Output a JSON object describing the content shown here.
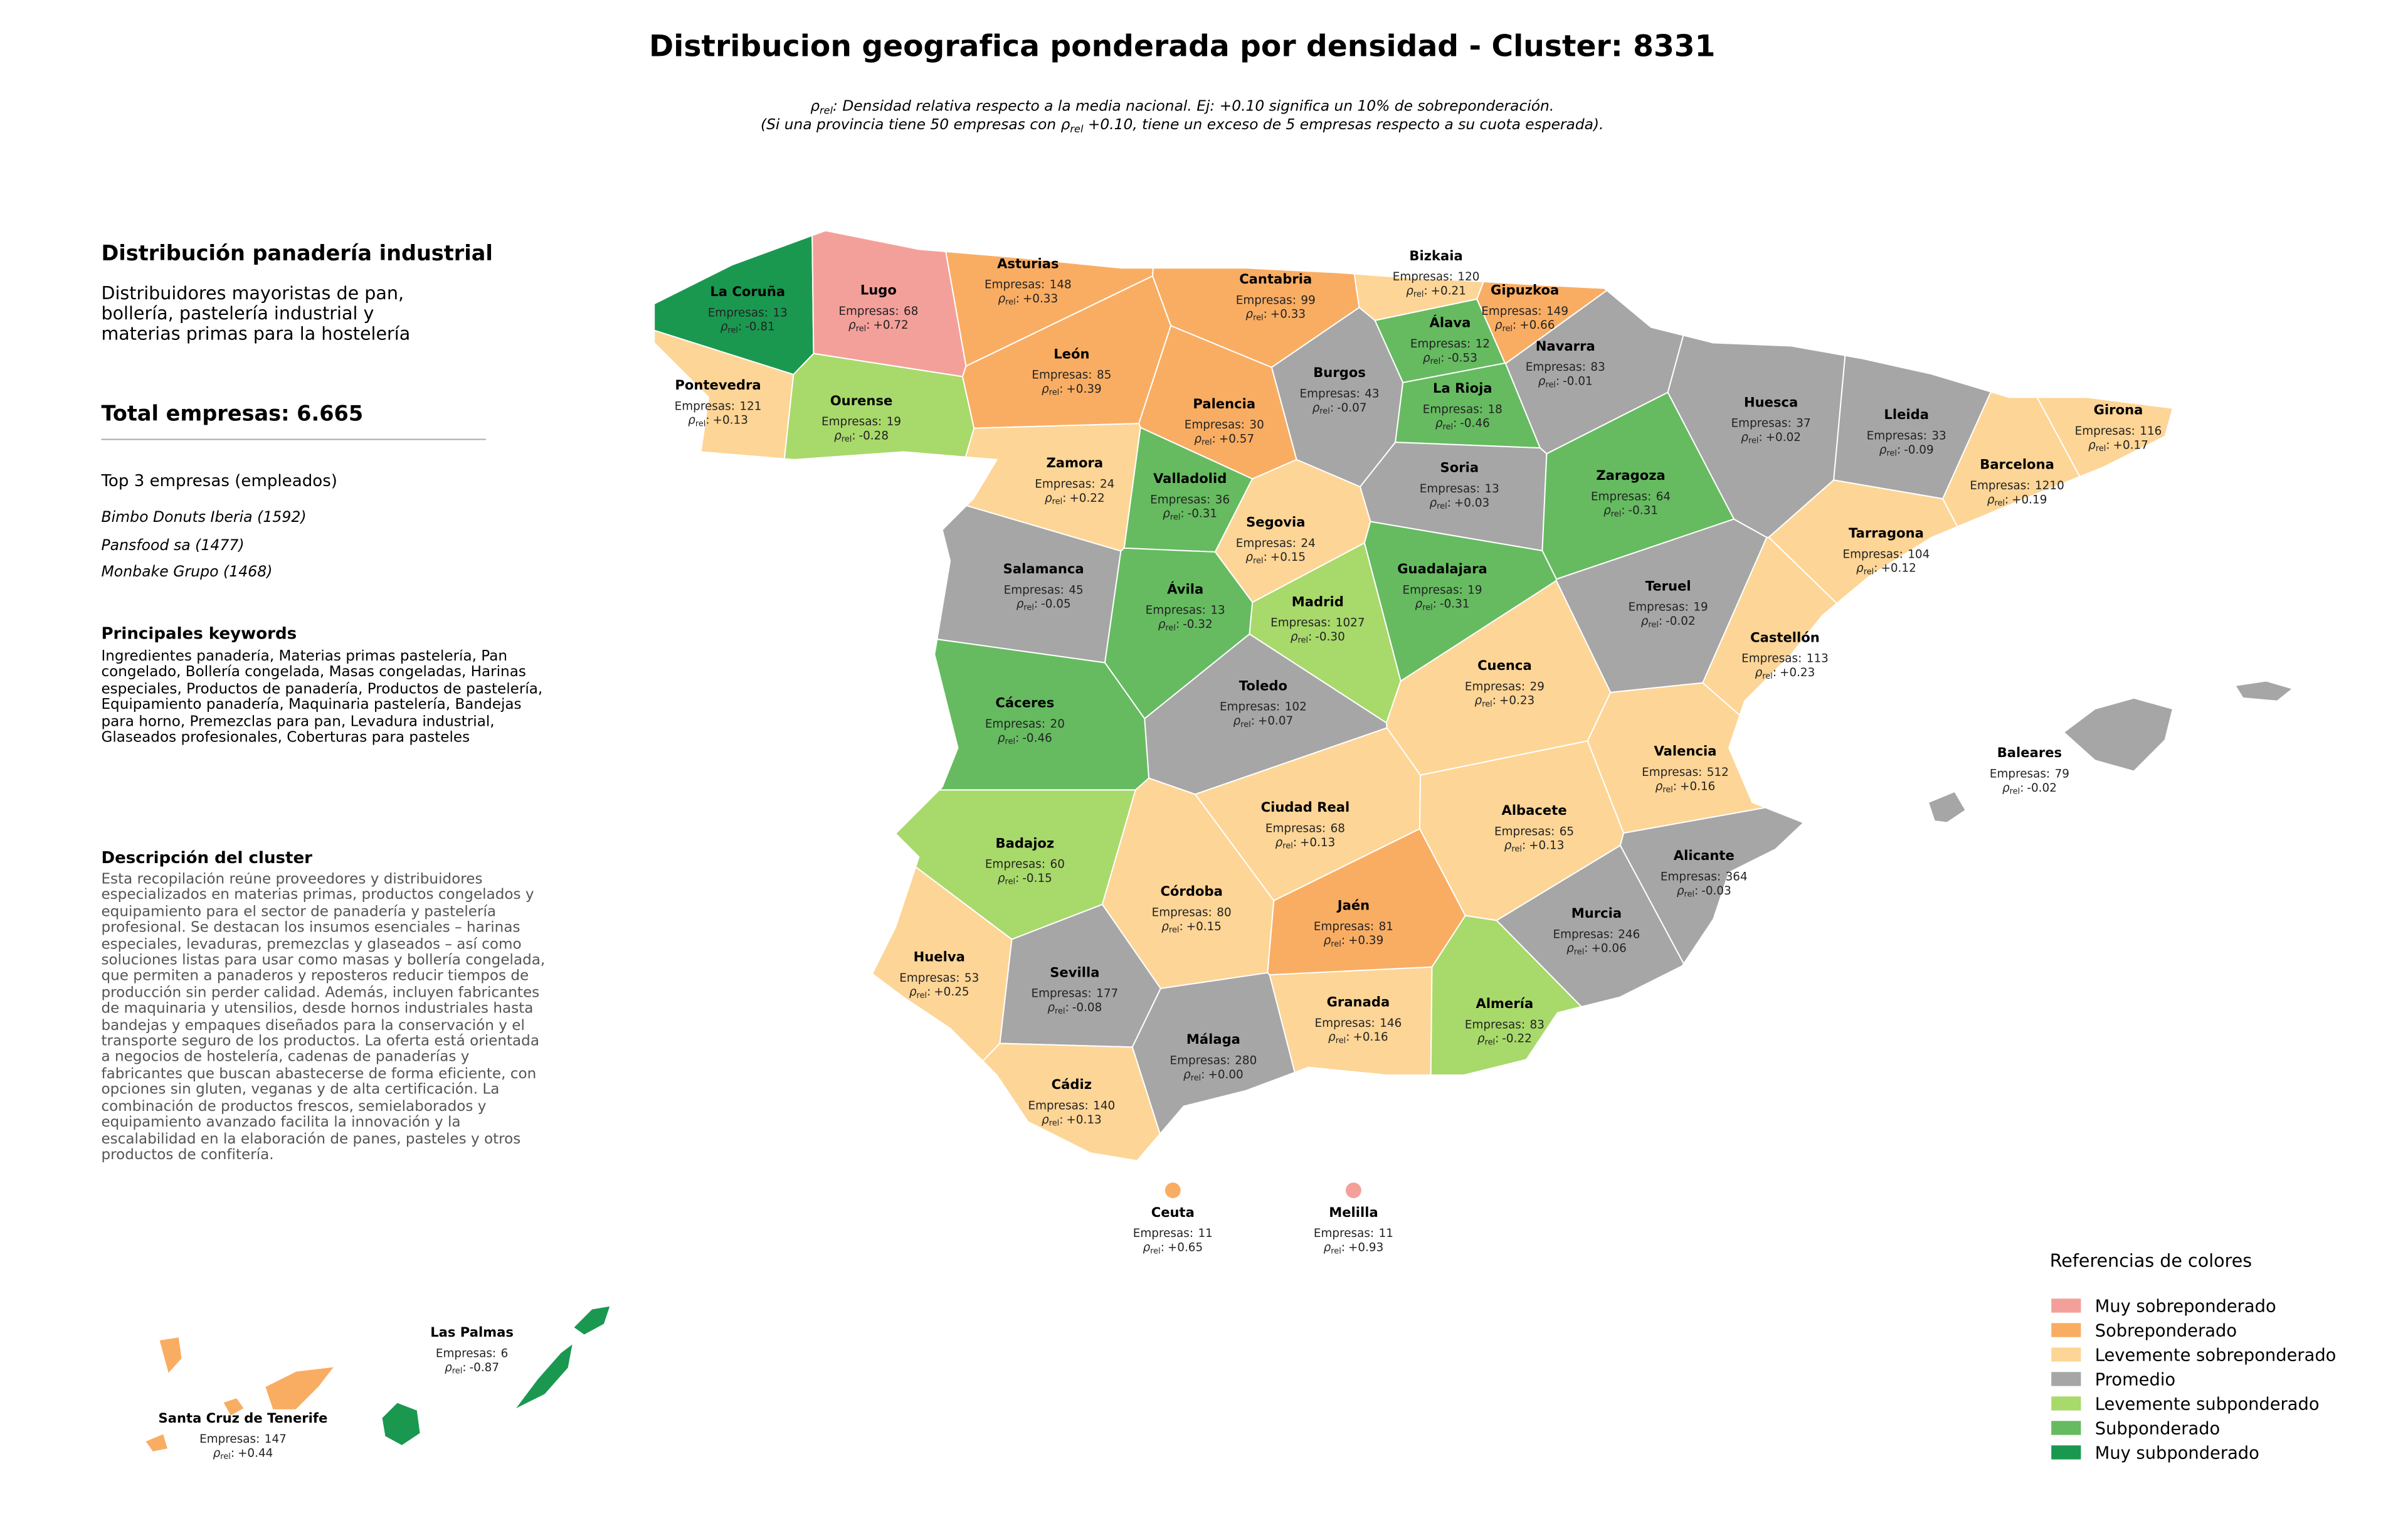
{
  "title": "Distribucion geografica ponderada por densidad - Cluster: 8331",
  "note": {
    "symbol": "ρ",
    "subscript": "rel",
    "line1": ": Densidad relativa respecto a la media nacional. Ej: +0.10 significa un 10% de sobreponderación.",
    "line2_before": "(Si una provincia tiene 50 empresas con ",
    "line2_after": " +0.10, tiene un exceso de 5 empresas respecto a su cuota esperada)."
  },
  "sidebar": {
    "heading": "Distribución panadería industrial",
    "description": "Distribuidores mayoristas de pan, bollería, pastelería industrial y materias primas para la hostelería",
    "total": "Total empresas: 6.665",
    "top_title": "Top 3 empresas (empleados)",
    "top_companies": [
      "Bimbo Donuts Iberia (1592)",
      "Pansfood sa (1477)",
      "Monbake Grupo (1468)"
    ],
    "keywords_title": "Principales keywords",
    "keywords": "Ingredientes panadería, Materias primas pastelería, Pan congelado, Bollería congelada, Masas congeladas, Harinas especiales, Productos de panadería, Productos de pastelería, Equipamiento panadería, Maquinaria pastelería, Bandejas para horno, Premezclas para pan, Levadura industrial, Glaseados profesionales, Coberturas para pasteles",
    "cluster_title": "Descripción del cluster",
    "cluster_text": "Esta recopilación reúne proveedores y distribuidores especializados en materias primas, productos congelados y equipamiento para el sector de panadería y pastelería profesional. Se destacan los insumos esenciales – harinas especiales, levaduras, premezclas y glaseados – así como soluciones listas para usar como masas y bollería congelada, que permiten a panaderos y reposteros reducir tiempos de producción sin perder calidad. Además, incluyen fabricantes de maquinaria y utensilios, desde hornos industriales hasta bandejas y empaques diseñados para la conservación y el transporte seguro de los productos. La oferta está orientada a negocios de hostelería, cadenas de panaderías y fabricantes que buscan abastecerse de forma eficiente, con opciones sin gluten, veganas y de alta certificación. La combinación de productos frescos, semielaborados y equipamiento avanzado facilita la innovación y la escalabilidad en la elaboración de panes, pasteles y otros productos de confitería."
  },
  "map": {
    "count_label": "Empresas:",
    "rho_symbol": "ρ",
    "rho_subscript": "rel",
    "rho_separator": ":",
    "provinces": [
      {
        "name": "La Coruña",
        "empresas": 13,
        "rho": -0.81,
        "rho_label": "-0.81",
        "color": "#1a9850"
      },
      {
        "name": "Lugo",
        "empresas": 68,
        "rho": 0.72,
        "rho_label": "+0.72",
        "color": "#f4a09a"
      },
      {
        "name": "Asturias",
        "empresas": 148,
        "rho": 0.33,
        "rho_label": "+0.33",
        "color": "#f9ad63"
      },
      {
        "name": "Cantabria",
        "empresas": 99,
        "rho": 0.33,
        "rho_label": "+0.33",
        "color": "#f9ad63"
      },
      {
        "name": "Bizkaia",
        "empresas": 120,
        "rho": 0.21,
        "rho_label": "+0.21",
        "color": "#fdd596"
      },
      {
        "name": "Gipuzkoa",
        "empresas": 149,
        "rho": 0.66,
        "rho_label": "+0.66",
        "color": "#f9ad63"
      },
      {
        "name": "Álava",
        "empresas": 12,
        "rho": -0.53,
        "rho_label": "-0.53",
        "color": "#66bb61"
      },
      {
        "name": "Navarra",
        "empresas": 83,
        "rho": -0.01,
        "rho_label": "-0.01",
        "color": "#a6a6a6"
      },
      {
        "name": "Pontevedra",
        "empresas": 121,
        "rho": 0.13,
        "rho_label": "+0.13",
        "color": "#fdd596"
      },
      {
        "name": "Ourense",
        "empresas": 19,
        "rho": -0.28,
        "rho_label": "-0.28",
        "color": "#a8d96b"
      },
      {
        "name": "León",
        "empresas": 85,
        "rho": 0.39,
        "rho_label": "+0.39",
        "color": "#f9ad63"
      },
      {
        "name": "Palencia",
        "empresas": 30,
        "rho": 0.57,
        "rho_label": "+0.57",
        "color": "#f9ad63"
      },
      {
        "name": "Burgos",
        "empresas": 43,
        "rho": -0.07,
        "rho_label": "-0.07",
        "color": "#a6a6a6"
      },
      {
        "name": "La Rioja",
        "empresas": 18,
        "rho": -0.46,
        "rho_label": "-0.46",
        "color": "#66bb61"
      },
      {
        "name": "Huesca",
        "empresas": 37,
        "rho": 0.02,
        "rho_label": "+0.02",
        "color": "#a6a6a6"
      },
      {
        "name": "Lleida",
        "empresas": 33,
        "rho": -0.09,
        "rho_label": "-0.09",
        "color": "#a6a6a6"
      },
      {
        "name": "Girona",
        "empresas": 116,
        "rho": 0.17,
        "rho_label": "+0.17",
        "color": "#fdd596"
      },
      {
        "name": "Zamora",
        "empresas": 24,
        "rho": 0.22,
        "rho_label": "+0.22",
        "color": "#fdd596"
      },
      {
        "name": "Valladolid",
        "empresas": 36,
        "rho": -0.31,
        "rho_label": "-0.31",
        "color": "#66bb61"
      },
      {
        "name": "Soria",
        "empresas": 13,
        "rho": 0.03,
        "rho_label": "+0.03",
        "color": "#a6a6a6"
      },
      {
        "name": "Zaragoza",
        "empresas": 64,
        "rho": -0.31,
        "rho_label": "-0.31",
        "color": "#66bb61"
      },
      {
        "name": "Barcelona",
        "empresas": 1210,
        "rho": 0.19,
        "rho_label": "+0.19",
        "color": "#fdd596"
      },
      {
        "name": "Segovia",
        "empresas": 24,
        "rho": 0.15,
        "rho_label": "+0.15",
        "color": "#fdd596"
      },
      {
        "name": "Tarragona",
        "empresas": 104,
        "rho": 0.12,
        "rho_label": "+0.12",
        "color": "#fdd596"
      },
      {
        "name": "Salamanca",
        "empresas": 45,
        "rho": -0.05,
        "rho_label": "-0.05",
        "color": "#a6a6a6"
      },
      {
        "name": "Guadalajara",
        "empresas": 19,
        "rho": -0.31,
        "rho_label": "-0.31",
        "color": "#66bb61"
      },
      {
        "name": "Ávila",
        "empresas": 13,
        "rho": -0.32,
        "rho_label": "-0.32",
        "color": "#66bb61"
      },
      {
        "name": "Madrid",
        "empresas": 1027,
        "rho": -0.3,
        "rho_label": "-0.30",
        "color": "#a8d96b"
      },
      {
        "name": "Teruel",
        "empresas": 19,
        "rho": -0.02,
        "rho_label": "-0.02",
        "color": "#a6a6a6"
      },
      {
        "name": "Castellón",
        "empresas": 113,
        "rho": 0.23,
        "rho_label": "+0.23",
        "color": "#fdd596"
      },
      {
        "name": "Cuenca",
        "empresas": 29,
        "rho": 0.23,
        "rho_label": "+0.23",
        "color": "#fdd596"
      },
      {
        "name": "Toledo",
        "empresas": 102,
        "rho": 0.07,
        "rho_label": "+0.07",
        "color": "#a6a6a6"
      },
      {
        "name": "Cáceres",
        "empresas": 20,
        "rho": -0.46,
        "rho_label": "-0.46",
        "color": "#66bb61"
      },
      {
        "name": "Valencia",
        "empresas": 512,
        "rho": 0.16,
        "rho_label": "+0.16",
        "color": "#fdd596"
      },
      {
        "name": "Baleares",
        "empresas": 79,
        "rho": -0.02,
        "rho_label": "-0.02",
        "color": "#a6a6a6"
      },
      {
        "name": "Ciudad Real",
        "empresas": 68,
        "rho": 0.13,
        "rho_label": "+0.13",
        "color": "#fdd596"
      },
      {
        "name": "Albacete",
        "empresas": 65,
        "rho": 0.13,
        "rho_label": "+0.13",
        "color": "#fdd596"
      },
      {
        "name": "Badajoz",
        "empresas": 60,
        "rho": -0.15,
        "rho_label": "-0.15",
        "color": "#a8d96b"
      },
      {
        "name": "Alicante",
        "empresas": 364,
        "rho": -0.03,
        "rho_label": "-0.03",
        "color": "#a6a6a6"
      },
      {
        "name": "Córdoba",
        "empresas": 80,
        "rho": 0.15,
        "rho_label": "+0.15",
        "color": "#fdd596"
      },
      {
        "name": "Jaén",
        "empresas": 81,
        "rho": 0.39,
        "rho_label": "+0.39",
        "color": "#f9ad63"
      },
      {
        "name": "Murcia",
        "empresas": 246,
        "rho": 0.06,
        "rho_label": "+0.06",
        "color": "#a6a6a6"
      },
      {
        "name": "Huelva",
        "empresas": 53,
        "rho": 0.25,
        "rho_label": "+0.25",
        "color": "#fdd596"
      },
      {
        "name": "Sevilla",
        "empresas": 177,
        "rho": -0.08,
        "rho_label": "-0.08",
        "color": "#a6a6a6"
      },
      {
        "name": "Granada",
        "empresas": 146,
        "rho": 0.16,
        "rho_label": "+0.16",
        "color": "#fdd596"
      },
      {
        "name": "Almería",
        "empresas": 83,
        "rho": -0.22,
        "rho_label": "-0.22",
        "color": "#a8d96b"
      },
      {
        "name": "Málaga",
        "empresas": 280,
        "rho": 0.0,
        "rho_label": "+0.00",
        "color": "#a6a6a6"
      },
      {
        "name": "Cádiz",
        "empresas": 140,
        "rho": 0.13,
        "rho_label": "+0.13",
        "color": "#fdd596"
      },
      {
        "name": "Ceuta",
        "empresas": 11,
        "rho": 0.65,
        "rho_label": "+0.65",
        "color": "#f9ad63"
      },
      {
        "name": "Melilla",
        "empresas": 11,
        "rho": 0.93,
        "rho_label": "+0.93",
        "color": "#f4a09a"
      },
      {
        "name": "Las Palmas",
        "empresas": 6,
        "rho": -0.87,
        "rho_label": "-0.87",
        "color": "#1a9850"
      },
      {
        "name": "Santa Cruz de Tenerife",
        "empresas": 147,
        "rho": 0.44,
        "rho_label": "+0.44",
        "color": "#f9ad63"
      }
    ]
  },
  "legend": {
    "title": "Referencias de colores",
    "entries": [
      {
        "name": "Muy sobreponderado",
        "color": "#f4a09a"
      },
      {
        "name": "Sobreponderado",
        "color": "#f9ad63"
      },
      {
        "name": "Levemente sobreponderado",
        "color": "#fdd596"
      },
      {
        "name": "Promedio",
        "color": "#a6a6a6"
      },
      {
        "name": "Levemente subponderado",
        "color": "#a8d96b"
      },
      {
        "name": "Subponderado",
        "color": "#66bb61"
      },
      {
        "name": "Muy subponderado",
        "color": "#1a9850"
      }
    ]
  }
}
